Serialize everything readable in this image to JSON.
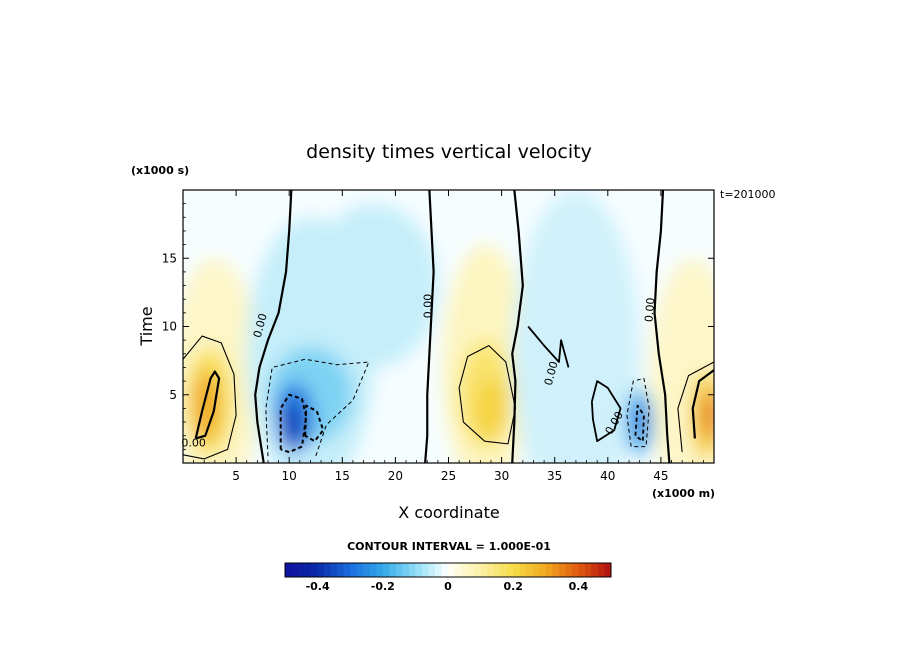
{
  "chart_data": {
    "type": "heatmap",
    "title": "density times vertical velocity",
    "xlabel": "X coordinate",
    "ylabel": "Time",
    "x_unit": "(x1000 m)",
    "y_unit": "(x1000 s)",
    "time_annotation": "t=201000",
    "contour_interval_text": "CONTOUR INTERVAL = 1.000E-01",
    "contour_labels": [
      "0.00",
      "0.00",
      "0.00",
      "0.00",
      "0.00",
      "0.00"
    ],
    "xlim": [
      0,
      50
    ],
    "ylim": [
      0,
      20
    ],
    "x_ticks": [
      5,
      10,
      15,
      20,
      25,
      30,
      35,
      40,
      45
    ],
    "y_ticks": [
      5,
      10,
      15
    ],
    "colorbar": {
      "range": [
        -0.5,
        0.5
      ],
      "tick_values": [
        -0.4,
        -0.2,
        0,
        0.2,
        0.4
      ],
      "tick_labels": [
        "-0.4",
        "-0.2",
        "0",
        "0.2",
        "0.4"
      ]
    },
    "features": [
      {
        "x": 2.5,
        "y": 4.5,
        "value": 0.3,
        "sign": "positive"
      },
      {
        "x": 10.5,
        "y": 3.5,
        "value": -0.35,
        "sign": "negative"
      },
      {
        "x": 13,
        "y": 6,
        "value": -0.15,
        "sign": "negative"
      },
      {
        "x": 28.5,
        "y": 5,
        "value": 0.2,
        "sign": "positive"
      },
      {
        "x": 43,
        "y": 3,
        "value": -0.3,
        "sign": "negative"
      },
      {
        "x": 49,
        "y": 3.5,
        "value": 0.35,
        "sign": "positive"
      }
    ]
  },
  "colors": {
    "neg_max": "#0a2aa8",
    "neg_mid": "#33a8e8",
    "neg_low": "#bfeefb",
    "zero": "#ffffff",
    "pos_low": "#fbf5c0",
    "pos_mid": "#f7dc48",
    "pos_high": "#f08a14",
    "pos_max": "#b01010"
  }
}
